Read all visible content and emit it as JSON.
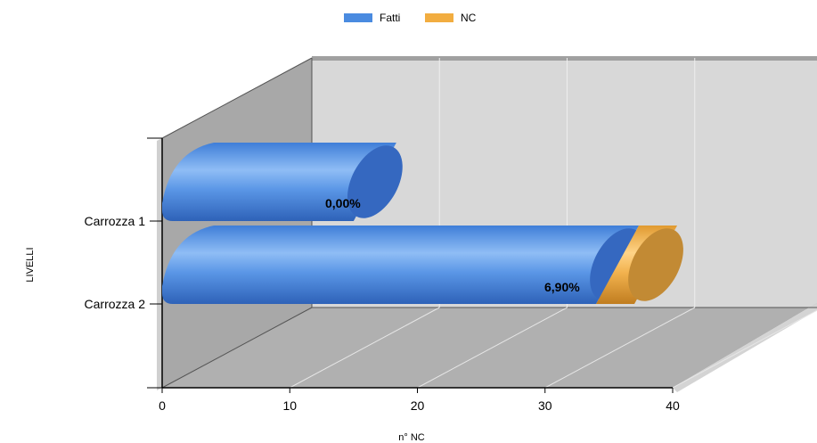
{
  "chart_data": {
    "type": "bar",
    "orientation": "horizontal",
    "stacked": true,
    "three_d": true,
    "categories": [
      "Carrozza 1",
      "Carrozza 2"
    ],
    "series": [
      {
        "name": "Fatti",
        "values": [
          15,
          34
        ],
        "color": "#4a8be0"
      },
      {
        "name": "NC",
        "values": [
          0,
          3
        ],
        "color": "#f2ad40"
      }
    ],
    "data_labels": [
      "0,00%",
      "6,90%"
    ],
    "xlabel": "n° NC",
    "ylabel": "LIVELLI",
    "xlim": [
      0,
      40
    ],
    "xticks": [
      "0",
      "10",
      "20",
      "30",
      "40"
    ],
    "legend": {
      "position": "top",
      "items": [
        "Fatti",
        "NC"
      ]
    },
    "grid": true
  }
}
